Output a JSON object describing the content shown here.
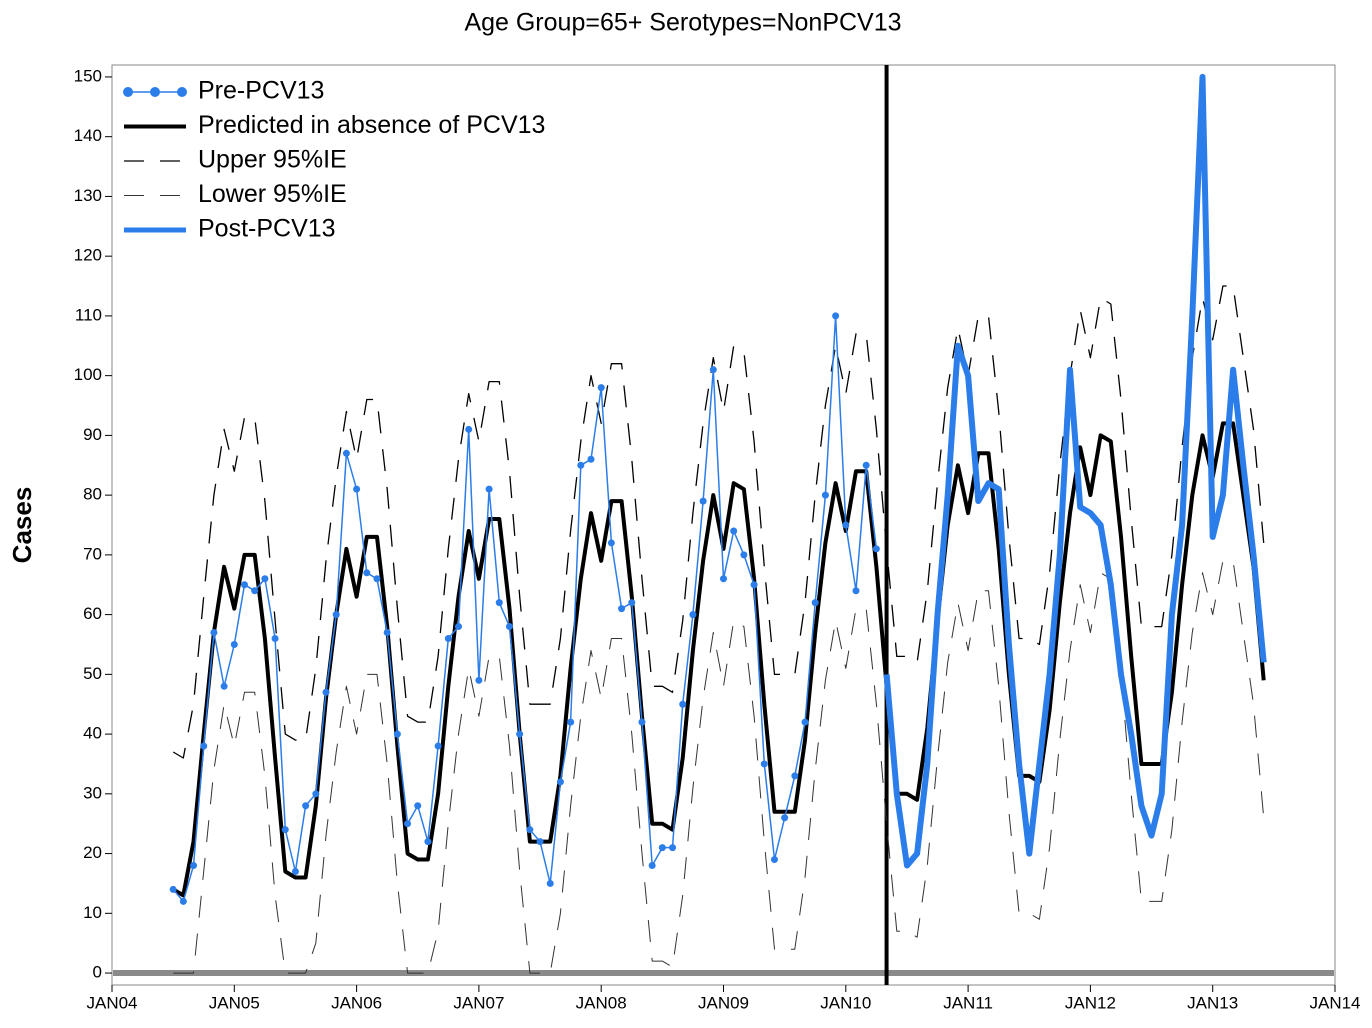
{
  "chart_data": {
    "type": "line",
    "title": "Age Group=65+ Serotypes=NonPCV13",
    "y_label": "Cases",
    "xlim": [
      "2004-01",
      "2014-01"
    ],
    "xticks": [
      {
        "value": "2004-01",
        "label": "JAN04"
      },
      {
        "value": "2005-01",
        "label": "JAN05"
      },
      {
        "value": "2006-01",
        "label": "JAN06"
      },
      {
        "value": "2007-01",
        "label": "JAN07"
      },
      {
        "value": "2008-01",
        "label": "JAN08"
      },
      {
        "value": "2009-01",
        "label": "JAN09"
      },
      {
        "value": "2010-01",
        "label": "JAN10"
      },
      {
        "value": "2011-01",
        "label": "JAN11"
      },
      {
        "value": "2012-01",
        "label": "JAN12"
      },
      {
        "value": "2013-01",
        "label": "JAN13"
      },
      {
        "value": "2014-01",
        "label": "JAN14"
      }
    ],
    "ylim": [
      -2,
      152
    ],
    "yticks": [
      0,
      10,
      20,
      30,
      40,
      50,
      60,
      70,
      80,
      90,
      100,
      110,
      120,
      130,
      140,
      150
    ],
    "reference_x": "2010-05",
    "reference_y": 0,
    "legend": "upper-left",
    "x": [
      "2004-07",
      "2004-08",
      "2004-09",
      "2004-10",
      "2004-11",
      "2004-12",
      "2005-01",
      "2005-02",
      "2005-03",
      "2005-04",
      "2005-05",
      "2005-06",
      "2005-07",
      "2005-08",
      "2005-09",
      "2005-10",
      "2005-11",
      "2005-12",
      "2006-01",
      "2006-02",
      "2006-03",
      "2006-04",
      "2006-05",
      "2006-06",
      "2006-07",
      "2006-08",
      "2006-09",
      "2006-10",
      "2006-11",
      "2006-12",
      "2007-01",
      "2007-02",
      "2007-03",
      "2007-04",
      "2007-05",
      "2007-06",
      "2007-07",
      "2007-08",
      "2007-09",
      "2007-10",
      "2007-11",
      "2007-12",
      "2008-01",
      "2008-02",
      "2008-03",
      "2008-04",
      "2008-05",
      "2008-06",
      "2008-07",
      "2008-08",
      "2008-09",
      "2008-10",
      "2008-11",
      "2008-12",
      "2009-01",
      "2009-02",
      "2009-03",
      "2009-04",
      "2009-05",
      "2009-06",
      "2009-07",
      "2009-08",
      "2009-09",
      "2009-10",
      "2009-11",
      "2009-12",
      "2010-01",
      "2010-02",
      "2010-03",
      "2010-04",
      "2010-05",
      "2010-06",
      "2010-07",
      "2010-08",
      "2010-09",
      "2010-10",
      "2010-11",
      "2010-12",
      "2011-01",
      "2011-02",
      "2011-03",
      "2011-04",
      "2011-05",
      "2011-06",
      "2011-07",
      "2011-08",
      "2011-09",
      "2011-10",
      "2011-11",
      "2011-12",
      "2012-01",
      "2012-02",
      "2012-03",
      "2012-04",
      "2012-05",
      "2012-06",
      "2012-07",
      "2012-08",
      "2012-09",
      "2012-10",
      "2012-11",
      "2012-12",
      "2013-01",
      "2013-02",
      "2013-03",
      "2013-04",
      "2013-05",
      "2013-06"
    ],
    "series": [
      {
        "name": "Pre-PCV13",
        "color": "#2b7de9",
        "width": 1.5,
        "dash": "solid",
        "markers": true,
        "values": [
          14,
          12,
          18,
          38,
          57,
          48,
          55,
          65,
          64,
          66,
          56,
          24,
          17,
          28,
          30,
          47,
          60,
          87,
          81,
          67,
          66,
          57,
          40,
          25,
          28,
          22,
          38,
          56,
          58,
          91,
          49,
          81,
          62,
          58,
          40,
          24,
          22,
          15,
          32,
          42,
          85,
          86,
          98,
          72,
          61,
          62,
          42,
          18,
          21,
          21,
          45,
          60,
          79,
          101,
          66,
          74,
          70,
          65,
          35,
          19,
          26,
          33,
          42,
          62,
          80,
          110,
          75,
          64,
          85,
          71,
          null,
          null,
          null,
          null,
          null,
          null,
          null,
          null,
          null,
          null,
          null,
          null,
          null,
          null,
          null,
          null,
          null,
          null,
          null,
          null,
          null,
          null,
          null,
          null,
          null,
          null,
          null,
          null,
          null,
          null,
          null,
          null,
          null,
          null,
          null,
          null,
          null,
          null
        ]
      },
      {
        "name": "Predicted in absence of PCV13",
        "color": "#000000",
        "width": 4,
        "dash": "solid",
        "markers": false,
        "values": [
          14,
          13,
          22,
          40,
          57,
          68,
          61,
          70,
          70,
          56,
          36,
          17,
          16,
          16,
          28,
          46,
          60,
          71,
          63,
          73,
          73,
          58,
          38,
          20,
          19,
          19,
          30,
          48,
          63,
          74,
          66,
          76,
          76,
          61,
          40,
          22,
          22,
          22,
          33,
          51,
          66,
          77,
          69,
          79,
          79,
          63,
          43,
          25,
          25,
          24,
          36,
          54,
          69,
          80,
          71,
          82,
          81,
          66,
          45,
          27,
          27,
          27,
          39,
          57,
          72,
          82,
          74,
          84,
          84,
          68,
          48,
          30,
          30,
          29,
          41,
          59,
          75,
          85,
          77,
          87,
          87,
          71,
          50,
          33,
          33,
          32,
          44,
          62,
          77,
          88,
          80,
          90,
          89,
          73,
          53,
          35,
          35,
          35,
          47,
          65,
          80,
          90,
          83,
          92,
          92,
          80,
          68,
          49
        ]
      },
      {
        "name": "Upper 95%IE",
        "color": "#000000",
        "width": 1.3,
        "dash": "long",
        "markers": false,
        "values": [
          37,
          36,
          45,
          63,
          80,
          91,
          84,
          93,
          93,
          79,
          59,
          40,
          39,
          39,
          51,
          69,
          83,
          94,
          86,
          96,
          96,
          81,
          61,
          43,
          42,
          42,
          53,
          71,
          86,
          97,
          89,
          99,
          99,
          84,
          63,
          45,
          45,
          45,
          56,
          74,
          89,
          100,
          92,
          102,
          102,
          86,
          66,
          48,
          48,
          47,
          59,
          77,
          92,
          103,
          94,
          105,
          104,
          89,
          68,
          50,
          50,
          50,
          62,
          80,
          95,
          105,
          97,
          107,
          107,
          91,
          71,
          53,
          53,
          52,
          64,
          82,
          98,
          108,
          100,
          110,
          110,
          94,
          73,
          56,
          56,
          55,
          67,
          85,
          100,
          111,
          103,
          113,
          112,
          96,
          76,
          58,
          58,
          58,
          70,
          88,
          103,
          113,
          106,
          115,
          115,
          103,
          91,
          72
        ]
      },
      {
        "name": "Lower 95%IE",
        "color": "#333333",
        "width": 1,
        "dash": "long",
        "markers": false,
        "values": [
          0,
          0,
          0,
          17,
          34,
          45,
          38,
          47,
          47,
          33,
          13,
          0,
          0,
          0,
          5,
          23,
          37,
          48,
          40,
          50,
          50,
          35,
          15,
          0,
          0,
          0,
          7,
          25,
          40,
          51,
          43,
          53,
          53,
          38,
          17,
          0,
          0,
          0,
          10,
          28,
          43,
          54,
          46,
          56,
          56,
          40,
          20,
          2,
          2,
          1,
          13,
          31,
          46,
          57,
          48,
          59,
          58,
          43,
          22,
          4,
          4,
          4,
          16,
          34,
          49,
          59,
          51,
          61,
          61,
          45,
          25,
          7,
          7,
          6,
          18,
          36,
          52,
          62,
          54,
          64,
          64,
          48,
          27,
          10,
          10,
          9,
          21,
          39,
          54,
          65,
          57,
          67,
          66,
          50,
          30,
          12,
          12,
          12,
          24,
          42,
          57,
          67,
          60,
          69,
          69,
          57,
          45,
          26
        ]
      },
      {
        "name": "Post-PCV13",
        "color": "#2b7de9",
        "width": 6,
        "dash": "solid",
        "markers": false,
        "values": [
          null,
          null,
          null,
          null,
          null,
          null,
          null,
          null,
          null,
          null,
          null,
          null,
          null,
          null,
          null,
          null,
          null,
          null,
          null,
          null,
          null,
          null,
          null,
          null,
          null,
          null,
          null,
          null,
          null,
          null,
          null,
          null,
          null,
          null,
          null,
          null,
          null,
          null,
          null,
          null,
          null,
          null,
          null,
          null,
          null,
          null,
          null,
          null,
          null,
          null,
          null,
          null,
          null,
          null,
          null,
          null,
          null,
          null,
          null,
          null,
          null,
          null,
          null,
          null,
          null,
          null,
          null,
          null,
          null,
          null,
          50,
          30,
          18,
          20,
          35,
          60,
          80,
          105,
          100,
          79,
          82,
          81,
          55,
          35,
          20,
          35,
          50,
          70,
          101,
          78,
          77,
          75,
          65,
          50,
          40,
          28,
          23,
          30,
          60,
          75,
          110,
          150,
          73,
          80,
          101,
          85,
          70,
          52
        ]
      }
    ]
  }
}
